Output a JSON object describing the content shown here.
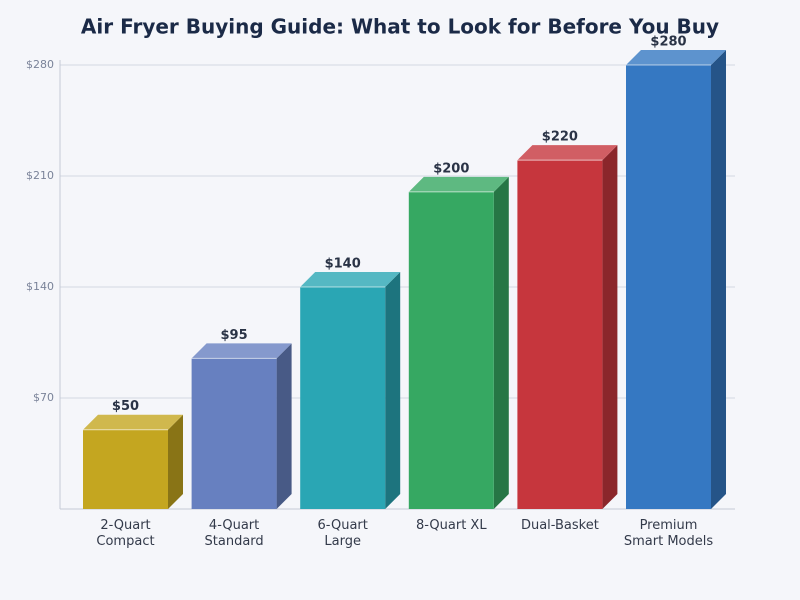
{
  "chart_data": {
    "type": "bar3d",
    "title": "Air Fryer Buying Guide: What to Look for Before You Buy",
    "categories": [
      "2-Quart Compact",
      "4-Quart Standard",
      "6-Quart Large",
      "8-Quart XL",
      "Dual-Basket",
      "Premium Smart Models"
    ],
    "values": [
      50,
      95,
      140,
      200,
      220,
      280
    ],
    "value_labels": [
      "$50",
      "$95",
      "$140",
      "$200",
      "$220",
      "$280"
    ],
    "colors": [
      "#c4a620",
      "#6780c0",
      "#2aa6b4",
      "#36a862",
      "#c6363d",
      "#3578c2"
    ],
    "ylim": [
      0,
      280
    ],
    "yticks": [
      {
        "value": 70,
        "label": "$70"
      },
      {
        "value": 140,
        "label": "$140"
      },
      {
        "value": 210,
        "label": "$210"
      },
      {
        "value": 280,
        "label": "$280"
      }
    ],
    "grid": true
  }
}
